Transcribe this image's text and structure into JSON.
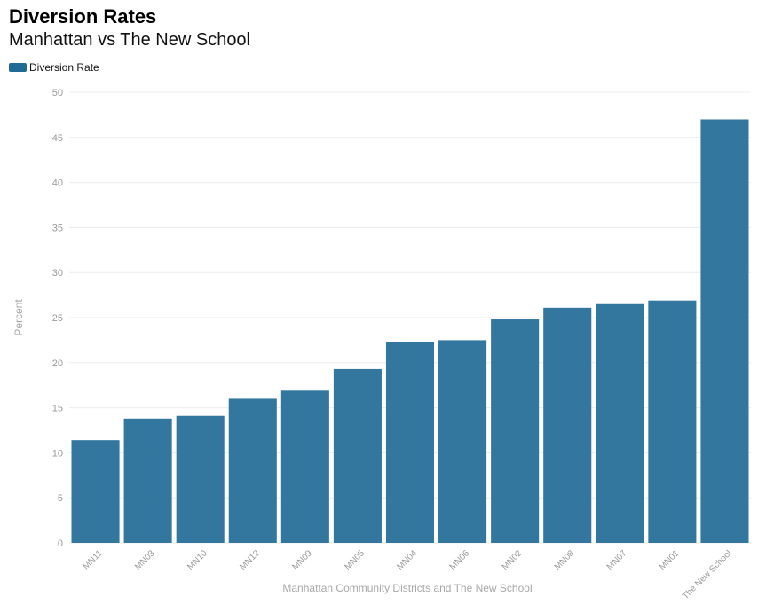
{
  "colors": {
    "bar": "#33779e",
    "legend": "#226a96",
    "grid": "#ececec",
    "tick_text": "#999999",
    "axis_label": "#a8a8a8"
  },
  "chart_data": {
    "type": "bar",
    "title": "Diversion Rates",
    "subtitle": "Manhattan vs The New School",
    "xlabel": "Manhattan Community Districts and The New School",
    "ylabel": "Percent",
    "ylim": [
      0,
      50
    ],
    "yticks": [
      0,
      5,
      10,
      15,
      20,
      25,
      30,
      35,
      40,
      45,
      50
    ],
    "grid": true,
    "legend_position": "top-left",
    "categories": [
      "MN11",
      "MN03",
      "MN10",
      "MN12",
      "MN09",
      "MN05",
      "MN04",
      "MN06",
      "MN02",
      "MN08",
      "MN07",
      "MN01",
      "The New School"
    ],
    "series": [
      {
        "name": "Diversion Rate",
        "values": [
          11.4,
          13.8,
          14.1,
          16.0,
          16.9,
          19.3,
          22.3,
          22.5,
          24.8,
          26.1,
          26.5,
          26.9,
          47.0
        ]
      }
    ]
  }
}
